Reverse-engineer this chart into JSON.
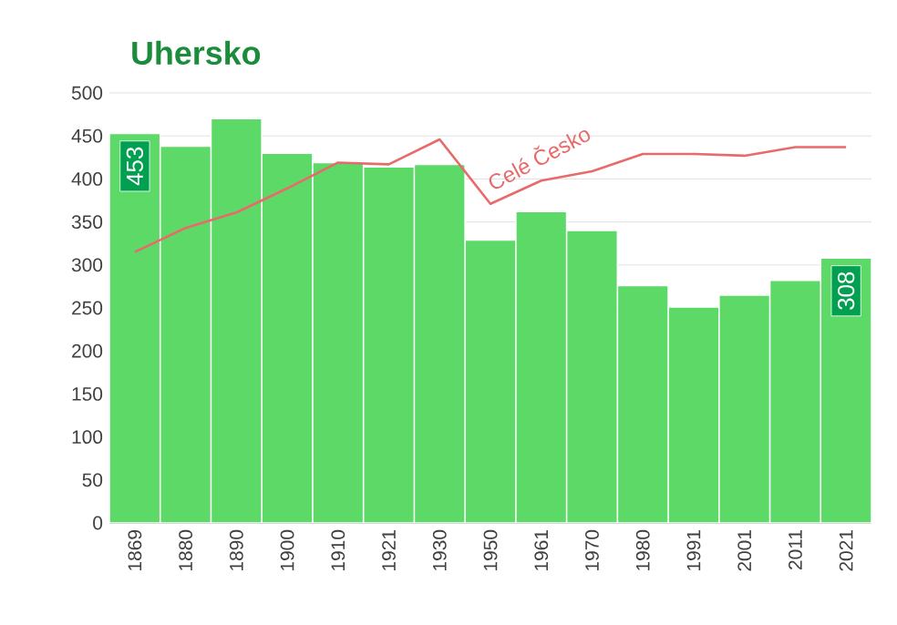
{
  "chart_data": {
    "type": "bar",
    "title": "Uhersko",
    "categories": [
      "1869",
      "1880",
      "1890",
      "1900",
      "1910",
      "1921",
      "1930",
      "1950",
      "1961",
      "1970",
      "1980",
      "1991",
      "2001",
      "2011",
      "2021"
    ],
    "series": [
      {
        "color": "#5cd966",
        "values": [
          453,
          438,
          470,
          430,
          419,
          414,
          417,
          329,
          362,
          340,
          276,
          251,
          265,
          282,
          308
        ],
        "value_labels": [
          "453",
          null,
          null,
          null,
          null,
          null,
          null,
          null,
          null,
          null,
          null,
          null,
          null,
          null,
          "308"
        ]
      },
      {
        "type": "line",
        "name": "Celé Česko",
        "color": "#e86a6a",
        "values": [
          315,
          343,
          361,
          389,
          419,
          417,
          446,
          371,
          398,
          409,
          429,
          429,
          427,
          437,
          437
        ]
      }
    ],
    "ylim": [
      0,
      500
    ],
    "yticks": [
      0,
      50,
      100,
      150,
      200,
      250,
      300,
      350,
      400,
      450,
      500
    ],
    "grid": "y"
  }
}
